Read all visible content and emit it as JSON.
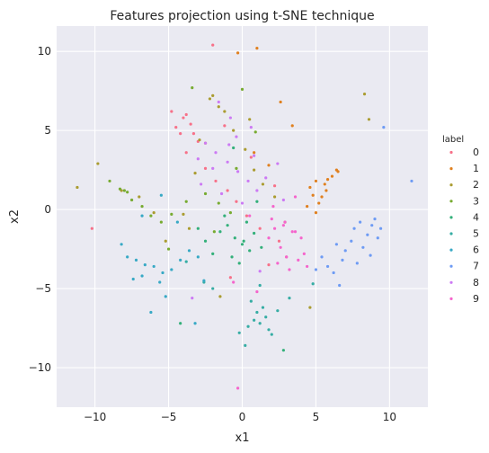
{
  "chart_data": {
    "type": "scatter",
    "title": "Features projection using t-SNE technique",
    "xlabel": "x1",
    "ylabel": "x2",
    "xlim": [
      -12.6,
      12.6
    ],
    "ylim": [
      -12.5,
      11.6
    ],
    "xticks": [
      -10,
      -5,
      0,
      5,
      10
    ],
    "yticks": [
      -10,
      -5,
      0,
      5,
      10
    ],
    "xtick_labels": [
      "−10",
      "−5",
      "0",
      "5",
      "10"
    ],
    "ytick_labels": [
      "−10",
      "−5",
      "0",
      "5",
      "10"
    ],
    "grid": true,
    "legend_title": "label",
    "legend_position": "right",
    "series": [
      {
        "name": "0",
        "color": "#f77189",
        "x": [
          -4.0,
          -4.5,
          -3.8,
          -3.5,
          -4.2,
          -3.0,
          -2.5,
          -1.8,
          -1.0,
          -0.4,
          0.3,
          1.2,
          2.5,
          3.0,
          -10.2,
          -2.0,
          -3.3,
          -4.8,
          1.8,
          -0.8,
          2.2,
          -3.8,
          -1.2,
          0.6
        ],
        "y": [
          5.8,
          5.2,
          6.0,
          5.4,
          4.8,
          4.3,
          2.6,
          1.8,
          1.2,
          0.5,
          -0.4,
          -1.2,
          -2.0,
          -3.0,
          -1.2,
          10.4,
          4.8,
          6.2,
          -3.5,
          -4.3,
          1.5,
          3.6,
          5.3,
          3.3
        ]
      },
      {
        "name": "1",
        "color": "#e0801f",
        "x": [
          4.6,
          5.0,
          5.4,
          5.7,
          5.2,
          4.8,
          6.1,
          6.4,
          5.6,
          4.4,
          5.0,
          5.8,
          6.5,
          1.0,
          -0.3,
          2.6,
          3.4,
          0.8,
          -2.5,
          1.8
        ],
        "y": [
          1.4,
          1.8,
          0.8,
          1.2,
          0.4,
          0.9,
          2.1,
          2.5,
          1.6,
          0.2,
          -0.2,
          1.9,
          2.4,
          10.2,
          9.9,
          6.8,
          5.3,
          3.6,
          4.2,
          2.8
        ]
      },
      {
        "name": "2",
        "color": "#aa9c30",
        "x": [
          -2.2,
          -2.0,
          -1.6,
          -1.2,
          -0.6,
          0.2,
          0.8,
          1.4,
          2.2,
          -3.2,
          -4.0,
          -3.6,
          -8.2,
          -7.0,
          -6.0,
          -5.2,
          -1.5,
          4.6,
          8.3,
          8.6,
          -11.2,
          -9.8,
          -2.9,
          0.5,
          2.9
        ],
        "y": [
          7.0,
          7.2,
          6.5,
          6.2,
          5.0,
          3.8,
          2.5,
          1.6,
          0.8,
          2.3,
          -0.3,
          -1.2,
          1.2,
          0.8,
          -0.2,
          -2.0,
          -5.5,
          -6.2,
          7.3,
          5.7,
          1.4,
          2.9,
          4.4,
          5.7,
          -0.8
        ]
      },
      {
        "name": "3",
        "color": "#77ab31",
        "x": [
          -8.3,
          -8.0,
          -7.8,
          -7.5,
          -6.8,
          -6.2,
          -5.5,
          -4.8,
          -3.8,
          -2.5,
          -1.6,
          -0.8,
          0.0,
          -9.0,
          -5.0,
          -0.4,
          -3.4,
          0.9,
          -1.9
        ],
        "y": [
          1.3,
          1.2,
          1.1,
          0.6,
          0.2,
          -0.4,
          -0.8,
          -0.3,
          0.5,
          1.0,
          0.4,
          -0.2,
          7.6,
          1.8,
          -2.5,
          2.6,
          7.7,
          4.9,
          -1.4
        ]
      },
      {
        "name": "4",
        "color": "#33b07a",
        "x": [
          -1.0,
          -0.5,
          0.0,
          0.5,
          -1.5,
          -2.0,
          -0.2,
          0.8,
          -1.2,
          0.3,
          -0.7,
          0.1,
          -2.5,
          -3.0,
          1.3,
          1.0,
          2.8,
          -4.2,
          -0.6
        ],
        "y": [
          -1.0,
          -1.8,
          -2.2,
          -2.6,
          -1.4,
          -2.8,
          -3.4,
          -1.5,
          -0.4,
          -0.8,
          -3.0,
          -2.0,
          -2.0,
          -1.2,
          -2.4,
          0.5,
          -8.9,
          -7.2,
          3.9
        ]
      },
      {
        "name": "5",
        "color": "#36ada4",
        "x": [
          0.8,
          1.2,
          1.6,
          0.4,
          1.0,
          1.8,
          0.6,
          1.4,
          -2.0,
          -2.6,
          3.2,
          2.4,
          1.2,
          -0.2,
          4.8,
          -3.8,
          0.2,
          2.0
        ],
        "y": [
          -7.0,
          -7.2,
          -6.8,
          -7.4,
          -6.5,
          -7.6,
          -5.8,
          -6.2,
          -5.0,
          -4.6,
          -5.6,
          -6.4,
          -4.8,
          -7.8,
          -4.7,
          -3.3,
          -8.6,
          -7.9
        ]
      },
      {
        "name": "6",
        "color": "#38a9c5",
        "x": [
          -7.8,
          -7.2,
          -6.6,
          -6.0,
          -5.4,
          -4.8,
          -4.2,
          -5.6,
          -6.8,
          -3.6,
          -3.0,
          -5.2,
          -6.2,
          -7.4,
          -4.4,
          -8.2,
          -3.2,
          -2.6,
          -6.8,
          -5.5
        ],
        "y": [
          -3.0,
          -3.2,
          -3.5,
          -3.6,
          -4.0,
          -3.8,
          -3.2,
          -4.6,
          -4.2,
          -2.6,
          -3.0,
          -5.5,
          -6.5,
          -4.4,
          -0.8,
          -2.2,
          -7.2,
          -4.5,
          -0.4,
          0.9
        ]
      },
      {
        "name": "7",
        "color": "#6e9bf4",
        "x": [
          7.6,
          8.0,
          8.5,
          9.0,
          9.2,
          8.8,
          7.4,
          8.2,
          9.4,
          6.8,
          5.8,
          6.2,
          5.4,
          6.6,
          7.0,
          5.0,
          7.8,
          8.7,
          6.4,
          11.5,
          9.6
        ],
        "y": [
          -1.2,
          -0.8,
          -1.6,
          -0.6,
          -1.8,
          -1.0,
          -2.0,
          -2.4,
          -1.2,
          -3.2,
          -3.6,
          -4.0,
          -3.0,
          -4.8,
          -2.6,
          -3.8,
          -3.4,
          -2.9,
          -2.2,
          1.8,
          5.2
        ]
      },
      {
        "name": "8",
        "color": "#cc7af4",
        "x": [
          -2.5,
          -1.8,
          -1.0,
          -0.3,
          0.4,
          1.0,
          -2.0,
          -1.4,
          0.0,
          -0.8,
          -3.0,
          0.8,
          1.6,
          2.4,
          -1.6,
          -0.4,
          0.6,
          -2.8,
          1.2,
          2.8,
          -3.4,
          -0.9
        ],
        "y": [
          4.2,
          3.6,
          3.0,
          2.4,
          1.8,
          1.2,
          2.6,
          1.0,
          0.4,
          5.8,
          3.2,
          3.4,
          2.0,
          2.9,
          6.8,
          4.6,
          5.2,
          1.6,
          -3.9,
          0.6,
          -5.6,
          4.1
        ]
      },
      {
        "name": "9",
        "color": "#f565cc",
        "x": [
          2.2,
          2.8,
          3.4,
          4.0,
          3.0,
          2.4,
          3.8,
          2.6,
          3.2,
          4.2,
          2.0,
          3.6,
          4.4,
          1.8,
          2.9,
          0.5,
          -0.6,
          1.0,
          3.6,
          2.1,
          -0.3
        ],
        "y": [
          -1.2,
          -1.0,
          -1.4,
          -1.8,
          -3.0,
          -3.4,
          -3.2,
          -2.4,
          -3.8,
          -2.8,
          -0.6,
          -1.4,
          -3.6,
          -1.8,
          -0.8,
          -0.4,
          -4.6,
          -5.2,
          0.8,
          0.2,
          -11.3
        ]
      }
    ]
  }
}
